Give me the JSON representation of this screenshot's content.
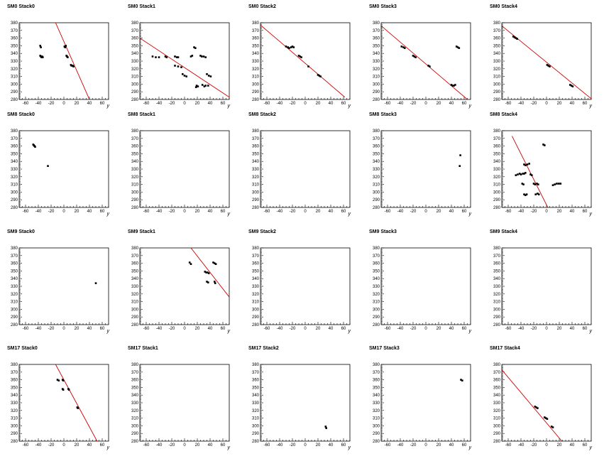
{
  "chart_data": [
    {
      "type": "scatter",
      "title": "SM0 Stack0",
      "xlabel": "y",
      "xlim": [
        -70,
        70
      ],
      "ylim": [
        280,
        380
      ],
      "x_ticks": [
        -60,
        -40,
        -20,
        0,
        20,
        40,
        60
      ],
      "y_ticks": [
        280,
        290,
        300,
        310,
        320,
        330,
        340,
        350,
        360,
        370,
        380
      ],
      "points": [
        [
          -37,
          350
        ],
        [
          -36,
          348
        ],
        [
          -37,
          337
        ],
        [
          -36,
          336
        ],
        [
          -35,
          335
        ],
        [
          -34,
          336
        ],
        [
          -33,
          335
        ],
        [
          1,
          349
        ],
        [
          2,
          348
        ],
        [
          3,
          350
        ],
        [
          4,
          337
        ],
        [
          5,
          336
        ],
        [
          6,
          335
        ],
        [
          11,
          325
        ],
        [
          12,
          324
        ],
        [
          14,
          324
        ],
        [
          15,
          323
        ]
      ],
      "fit_line": [
        [
          -13,
          380
        ],
        [
          40,
          280
        ]
      ],
      "fit_color": "#cc0000"
    },
    {
      "type": "scatter",
      "title": "SM0 Stack1",
      "xlabel": "y",
      "xlim": [
        -70,
        70
      ],
      "ylim": [
        280,
        380
      ],
      "x_ticks": [
        -60,
        -40,
        -20,
        0,
        20,
        40,
        60
      ],
      "y_ticks": [
        280,
        290,
        300,
        310,
        320,
        330,
        340,
        350,
        360,
        370,
        380
      ],
      "points": [
        [
          -50,
          336
        ],
        [
          -45,
          335
        ],
        [
          -40,
          335
        ],
        [
          -30,
          336
        ],
        [
          -28,
          335
        ],
        [
          -15,
          336
        ],
        [
          -12,
          335
        ],
        [
          -10,
          335
        ],
        [
          -15,
          324
        ],
        [
          -10,
          323
        ],
        [
          -5,
          322
        ],
        [
          -3,
          313
        ],
        [
          0,
          311
        ],
        [
          3,
          310
        ],
        [
          10,
          336
        ],
        [
          12,
          337
        ],
        [
          15,
          348
        ],
        [
          17,
          347
        ],
        [
          18,
          296
        ],
        [
          19,
          298
        ],
        [
          21,
          297
        ],
        [
          25,
          337
        ],
        [
          27,
          336
        ],
        [
          30,
          336
        ],
        [
          33,
          335
        ],
        [
          28,
          299
        ],
        [
          31,
          297
        ],
        [
          33,
          298
        ],
        [
          37,
          298
        ],
        [
          35,
          313
        ],
        [
          38,
          311
        ],
        [
          41,
          310
        ]
      ],
      "fit_line": [
        [
          -70,
          360
        ],
        [
          70,
          283
        ]
      ],
      "fit_color": "#cc0000"
    },
    {
      "type": "scatter",
      "title": "SM0 Stack2",
      "xlabel": "y",
      "xlim": [
        -70,
        70
      ],
      "ylim": [
        280,
        380
      ],
      "x_ticks": [
        -60,
        -40,
        -20,
        0,
        20,
        40,
        60
      ],
      "y_ticks": [
        280,
        290,
        300,
        310,
        320,
        330,
        340,
        350,
        360,
        370,
        380
      ],
      "points": [
        [
          -30,
          349
        ],
        [
          -27,
          348
        ],
        [
          -25,
          347
        ],
        [
          -22,
          348
        ],
        [
          -20,
          349
        ],
        [
          -18,
          348
        ],
        [
          -10,
          337
        ],
        [
          -8,
          336
        ],
        [
          -6,
          335
        ],
        [
          5,
          323
        ],
        [
          20,
          312
        ],
        [
          22,
          311
        ],
        [
          24,
          310
        ]
      ],
      "fit_line": [
        [
          -70,
          377
        ],
        [
          62,
          283
        ]
      ],
      "fit_color": "#cc0000"
    },
    {
      "type": "scatter",
      "title": "SM0 Stack3",
      "xlabel": "y",
      "xlim": [
        -70,
        70
      ],
      "ylim": [
        280,
        380
      ],
      "x_ticks": [
        -60,
        -40,
        -20,
        0,
        20,
        40,
        60
      ],
      "y_ticks": [
        280,
        290,
        300,
        310,
        320,
        330,
        340,
        350,
        360,
        370,
        380
      ],
      "points": [
        [
          -38,
          349
        ],
        [
          -35,
          348
        ],
        [
          -33,
          347
        ],
        [
          -20,
          337
        ],
        [
          -18,
          336
        ],
        [
          -16,
          335
        ],
        [
          4,
          324
        ],
        [
          6,
          323
        ],
        [
          40,
          299
        ],
        [
          42,
          298
        ],
        [
          44,
          298
        ],
        [
          46,
          299
        ],
        [
          48,
          349
        ],
        [
          50,
          348
        ],
        [
          52,
          347
        ]
      ],
      "fit_line": [
        [
          -70,
          376
        ],
        [
          65,
          280
        ]
      ],
      "fit_color": "#cc0000"
    },
    {
      "type": "scatter",
      "title": "SM0 Stack4",
      "xlabel": "y",
      "xlim": [
        -70,
        70
      ],
      "ylim": [
        280,
        380
      ],
      "x_ticks": [
        -60,
        -40,
        -20,
        0,
        20,
        40,
        60
      ],
      "y_ticks": [
        280,
        290,
        300,
        310,
        320,
        330,
        340,
        350,
        360,
        370,
        380
      ],
      "points": [
        [
          -52,
          362
        ],
        [
          -50,
          361
        ],
        [
          -48,
          360
        ],
        [
          -46,
          359
        ],
        [
          1,
          325
        ],
        [
          3,
          324
        ],
        [
          5,
          323
        ],
        [
          37,
          299
        ],
        [
          39,
          298
        ],
        [
          41,
          297
        ]
      ],
      "fit_line": [
        [
          -70,
          376
        ],
        [
          70,
          281
        ]
      ],
      "fit_color": "#cc0000"
    },
    {
      "type": "scatter",
      "title": "SM8 Stack0",
      "xlabel": "y",
      "xlim": [
        -70,
        70
      ],
      "ylim": [
        280,
        380
      ],
      "x_ticks": [
        -60,
        -40,
        -20,
        0,
        20,
        40,
        60
      ],
      "y_ticks": [
        280,
        290,
        300,
        310,
        320,
        330,
        340,
        350,
        360,
        370,
        380
      ],
      "points": [
        [
          -48,
          362
        ],
        [
          -47,
          361
        ],
        [
          -46,
          360
        ],
        [
          -45,
          359
        ],
        [
          -25,
          334
        ]
      ],
      "fit_line": null
    },
    {
      "type": "scatter",
      "title": "SM8 Stack1",
      "xlabel": "y",
      "xlim": [
        -70,
        70
      ],
      "ylim": [
        280,
        380
      ],
      "x_ticks": [
        -60,
        -40,
        -20,
        0,
        20,
        40,
        60
      ],
      "y_ticks": [
        280,
        290,
        300,
        310,
        320,
        330,
        340,
        350,
        360,
        370,
        380
      ],
      "points": [],
      "fit_line": null
    },
    {
      "type": "scatter",
      "title": "SM8 Stack2",
      "xlabel": "y",
      "xlim": [
        -70,
        70
      ],
      "ylim": [
        280,
        380
      ],
      "x_ticks": [
        -60,
        -40,
        -20,
        0,
        20,
        40,
        60
      ],
      "y_ticks": [
        280,
        290,
        300,
        310,
        320,
        330,
        340,
        350,
        360,
        370,
        380
      ],
      "points": [],
      "fit_line": null
    },
    {
      "type": "scatter",
      "title": "SM8 Stack3",
      "xlabel": "y",
      "xlim": [
        -70,
        70
      ],
      "ylim": [
        280,
        380
      ],
      "x_ticks": [
        -60,
        -40,
        -20,
        0,
        20,
        40,
        60
      ],
      "y_ticks": [
        280,
        290,
        300,
        310,
        320,
        330,
        340,
        350,
        360,
        370,
        380
      ],
      "points": [
        [
          54,
          348
        ],
        [
          53,
          334
        ]
      ],
      "fit_line": null
    },
    {
      "type": "scatter",
      "title": "SM8 Stack4",
      "xlabel": "y",
      "xlim": [
        -70,
        70
      ],
      "ylim": [
        280,
        380
      ],
      "x_ticks": [
        -60,
        -40,
        -20,
        0,
        20,
        40,
        60
      ],
      "y_ticks": [
        280,
        290,
        300,
        310,
        320,
        330,
        340,
        350,
        360,
        370,
        380
      ],
      "points": [
        [
          -48,
          322
        ],
        [
          -45,
          323
        ],
        [
          -42,
          324
        ],
        [
          -40,
          323
        ],
        [
          -37,
          324
        ],
        [
          -35,
          324
        ],
        [
          -33,
          325
        ],
        [
          -38,
          311
        ],
        [
          -36,
          310
        ],
        [
          -35,
          297
        ],
        [
          -33,
          296
        ],
        [
          -31,
          297
        ],
        [
          -35,
          336
        ],
        [
          -33,
          335
        ],
        [
          -30,
          336
        ],
        [
          -27,
          337
        ],
        [
          -25,
          323
        ],
        [
          -23,
          322
        ],
        [
          -20,
          311
        ],
        [
          -18,
          310
        ],
        [
          -15,
          311
        ],
        [
          -13,
          310
        ],
        [
          -17,
          297
        ],
        [
          -14,
          298
        ],
        [
          -12,
          297
        ],
        [
          -5,
          362
        ],
        [
          -3,
          361
        ],
        [
          10,
          309
        ],
        [
          13,
          310
        ],
        [
          16,
          311
        ],
        [
          19,
          311
        ],
        [
          22,
          311
        ]
      ],
      "fit_line": [
        [
          -54,
          373
        ],
        [
          2,
          280
        ]
      ],
      "fit_color": "#cc0000"
    },
    {
      "type": "scatter",
      "title": "SM9 Stack0",
      "xlabel": "y",
      "xlim": [
        -70,
        70
      ],
      "ylim": [
        280,
        380
      ],
      "x_ticks": [
        -60,
        -40,
        -20,
        0,
        20,
        40,
        60
      ],
      "y_ticks": [
        280,
        290,
        300,
        310,
        320,
        330,
        340,
        350,
        360,
        370,
        380
      ],
      "points": [
        [
          50,
          334
        ]
      ],
      "fit_line": null
    },
    {
      "type": "scatter",
      "title": "SM9 Stack1",
      "xlabel": "y",
      "xlim": [
        -70,
        70
      ],
      "ylim": [
        280,
        380
      ],
      "x_ticks": [
        -60,
        -40,
        -20,
        0,
        20,
        40,
        60
      ],
      "y_ticks": [
        280,
        290,
        300,
        310,
        320,
        330,
        340,
        350,
        360,
        370,
        380
      ],
      "points": [
        [
          8,
          361
        ],
        [
          10,
          359
        ],
        [
          32,
          349
        ],
        [
          34,
          348
        ],
        [
          36,
          348
        ],
        [
          38,
          347
        ],
        [
          35,
          336
        ],
        [
          37,
          335
        ],
        [
          45,
          361
        ],
        [
          47,
          360
        ],
        [
          49,
          359
        ],
        [
          47,
          336
        ],
        [
          48,
          334
        ]
      ],
      "fit_line": [
        [
          10,
          380
        ],
        [
          70,
          316
        ]
      ],
      "fit_color": "#cc0000"
    },
    {
      "type": "scatter",
      "title": "SM9 Stack2",
      "xlabel": "y",
      "xlim": [
        -70,
        70
      ],
      "ylim": [
        280,
        380
      ],
      "x_ticks": [
        -60,
        -40,
        -20,
        0,
        20,
        40,
        60
      ],
      "y_ticks": [
        280,
        290,
        300,
        310,
        320,
        330,
        340,
        350,
        360,
        370,
        380
      ],
      "points": [],
      "fit_line": null
    },
    {
      "type": "scatter",
      "title": "SM9 Stack3",
      "xlabel": "y",
      "xlim": [
        -70,
        70
      ],
      "ylim": [
        280,
        380
      ],
      "x_ticks": [
        -60,
        -40,
        -20,
        0,
        20,
        40,
        60
      ],
      "y_ticks": [
        280,
        290,
        300,
        310,
        320,
        330,
        340,
        350,
        360,
        370,
        380
      ],
      "points": [],
      "fit_line": null
    },
    {
      "type": "scatter",
      "title": "SM9 Stack4",
      "xlabel": "y",
      "xlim": [
        -70,
        70
      ],
      "ylim": [
        280,
        380
      ],
      "x_ticks": [
        -60,
        -40,
        -20,
        0,
        20,
        40,
        60
      ],
      "y_ticks": [
        280,
        290,
        300,
        310,
        320,
        330,
        340,
        350,
        360,
        370,
        380
      ],
      "points": [],
      "fit_line": null
    },
    {
      "type": "scatter",
      "title": "SM17 Stack0",
      "xlabel": "y",
      "xlim": [
        -70,
        70
      ],
      "ylim": [
        280,
        380
      ],
      "x_ticks": [
        -60,
        -40,
        -20,
        0,
        20,
        40,
        60
      ],
      "y_ticks": [
        280,
        290,
        300,
        310,
        320,
        330,
        340,
        350,
        360,
        370,
        380
      ],
      "points": [
        [
          -10,
          360
        ],
        [
          -8,
          359
        ],
        [
          -2,
          360
        ],
        [
          -1,
          359
        ],
        [
          -2,
          348
        ],
        [
          -1,
          347
        ],
        [
          7,
          348
        ],
        [
          8,
          347
        ],
        [
          21,
          324
        ],
        [
          22,
          323
        ]
      ],
      "fit_line": [
        [
          -13,
          380
        ],
        [
          52,
          280
        ]
      ],
      "fit_color": "#cc0000"
    },
    {
      "type": "scatter",
      "title": "SM17 Stack1",
      "xlabel": "y",
      "xlim": [
        -70,
        70
      ],
      "ylim": [
        280,
        380
      ],
      "x_ticks": [
        -60,
        -40,
        -20,
        0,
        20,
        40,
        60
      ],
      "y_ticks": [
        280,
        290,
        300,
        310,
        320,
        330,
        340,
        350,
        360,
        370,
        380
      ],
      "points": [],
      "fit_line": null
    },
    {
      "type": "scatter",
      "title": "SM17 Stack2",
      "xlabel": "y",
      "xlim": [
        -70,
        70
      ],
      "ylim": [
        280,
        380
      ],
      "x_ticks": [
        -60,
        -40,
        -20,
        0,
        20,
        40,
        60
      ],
      "y_ticks": [
        280,
        290,
        300,
        310,
        320,
        330,
        340,
        350,
        360,
        370,
        380
      ],
      "points": [
        [
          32,
          299
        ],
        [
          33,
          297
        ]
      ],
      "fit_line": null
    },
    {
      "type": "scatter",
      "title": "SM17 Stack3",
      "xlabel": "y",
      "xlim": [
        -70,
        70
      ],
      "ylim": [
        280,
        380
      ],
      "x_ticks": [
        -60,
        -40,
        -20,
        0,
        20,
        40,
        60
      ],
      "y_ticks": [
        280,
        290,
        300,
        310,
        320,
        330,
        340,
        350,
        360,
        370,
        380
      ],
      "points": [
        [
          55,
          360
        ],
        [
          57,
          359
        ]
      ],
      "fit_line": null
    },
    {
      "type": "scatter",
      "title": "SM17 Stack4",
      "xlabel": "y",
      "xlim": [
        -70,
        70
      ],
      "ylim": [
        280,
        380
      ],
      "x_ticks": [
        -60,
        -40,
        -20,
        0,
        20,
        40,
        60
      ],
      "y_ticks": [
        280,
        290,
        300,
        310,
        320,
        330,
        340,
        350,
        360,
        370,
        380
      ],
      "points": [
        [
          -18,
          325
        ],
        [
          -16,
          324
        ],
        [
          -14,
          323
        ],
        [
          -3,
          311
        ],
        [
          -1,
          310
        ],
        [
          1,
          309
        ],
        [
          8,
          299
        ],
        [
          10,
          298
        ]
      ],
      "fit_line": [
        [
          -70,
          373
        ],
        [
          24,
          280
        ]
      ],
      "fit_color": "#cc0000"
    }
  ]
}
